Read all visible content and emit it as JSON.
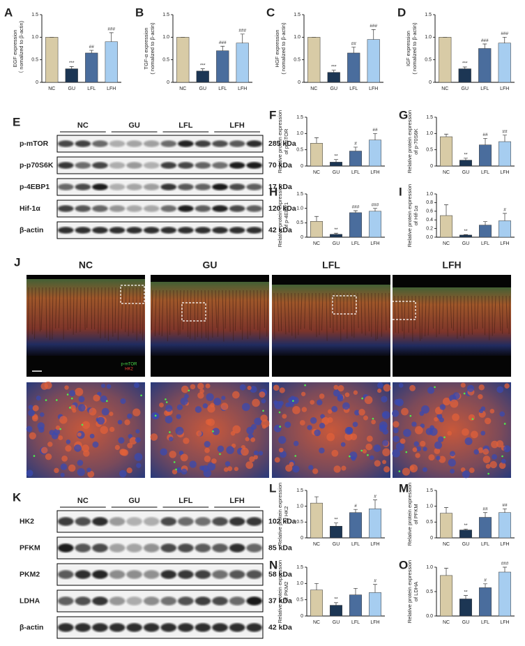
{
  "chart_data": [
    {
      "type": "bar",
      "panel": "A",
      "ylabel": [
        "EGF expression",
        "（ nomalized to β-actin)"
      ],
      "categories": [
        "NC",
        "GU",
        "LFL",
        "LFH"
      ],
      "values": [
        1.0,
        0.3,
        0.65,
        0.9
      ],
      "errors": [
        0,
        0.05,
        0.06,
        0.2
      ],
      "annotations": [
        null,
        "***",
        "##",
        "###"
      ],
      "colors": [
        "#d8cba6",
        "#1c3654",
        "#4a6d9d",
        "#a6cdf0"
      ],
      "ylim": [
        0,
        1.5
      ],
      "yticks": [
        0,
        0.5,
        {
          "value": 1,
          "label": "1.0"
        },
        1.5
      ]
    },
    {
      "type": "bar",
      "panel": "B",
      "ylabel": [
        "TGF-α expression",
        "( nomalized to β-actin)"
      ],
      "categories": [
        "NC",
        "GU",
        "LFL",
        "LFH"
      ],
      "values": [
        1.0,
        0.25,
        0.7,
        0.87
      ],
      "errors": [
        0,
        0.05,
        0.1,
        0.2
      ],
      "annotations": [
        null,
        "***",
        "###",
        "###"
      ],
      "colors": [
        "#d8cba6",
        "#1c3654",
        "#4a6d9d",
        "#a6cdf0"
      ],
      "ylim": [
        0,
        1.5
      ],
      "yticks": [
        0,
        0.5,
        {
          "value": 1,
          "label": "1.0"
        },
        1.5
      ]
    },
    {
      "type": "bar",
      "panel": "C",
      "ylabel": [
        "HGF expression",
        "( nomalized to β-actin)"
      ],
      "categories": [
        "NC",
        "GU",
        "LFL",
        "LFH"
      ],
      "values": [
        1.0,
        0.22,
        0.65,
        0.95
      ],
      "errors": [
        0,
        0.05,
        0.13,
        0.22
      ],
      "annotations": [
        null,
        "***",
        "##",
        "###"
      ],
      "colors": [
        "#d8cba6",
        "#1c3654",
        "#4a6d9d",
        "#a6cdf0"
      ],
      "ylim": [
        0,
        1.5
      ],
      "yticks": [
        0,
        0.5,
        {
          "value": 1,
          "label": "1.0"
        },
        1.5
      ]
    },
    {
      "type": "bar",
      "panel": "D",
      "ylabel": [
        "IGF expression",
        "( nomalized to β-actin)"
      ],
      "categories": [
        "NC",
        "GU",
        "LFL",
        "LFH"
      ],
      "values": [
        1.0,
        0.3,
        0.75,
        0.87
      ],
      "errors": [
        0,
        0.04,
        0.1,
        0.13
      ],
      "annotations": [
        null,
        "***",
        "###",
        "###"
      ],
      "colors": [
        "#d8cba6",
        "#1c3654",
        "#4a6d9d",
        "#a6cdf0"
      ],
      "ylim": [
        0,
        1.5
      ],
      "yticks": [
        0,
        0.5,
        {
          "value": 1,
          "label": "1.0"
        },
        1.5
      ]
    },
    {
      "type": "bar",
      "panel": "F",
      "ylabel": [
        "Relative protein expression",
        "of p-mTOR"
      ],
      "categories": [
        "NC",
        "GU",
        "LFL",
        "LFH"
      ],
      "values": [
        0.7,
        0.12,
        0.46,
        0.8
      ],
      "errors": [
        0.17,
        0.08,
        0.12,
        0.2
      ],
      "annotations": [
        null,
        "**",
        "#",
        "##"
      ],
      "colors": [
        "#d8cba6",
        "#1c3654",
        "#4a6d9d",
        "#a6cdf0"
      ],
      "ylim": [
        0,
        1.5
      ],
      "yticks": [
        0,
        0.5,
        {
          "value": 1,
          "label": "1.0"
        },
        1.5
      ]
    },
    {
      "type": "bar",
      "panel": "G",
      "ylabel": [
        "Relative protein expression",
        "of p-70S6K"
      ],
      "categories": [
        "NC",
        "GU",
        "LFL",
        "LFH"
      ],
      "values": [
        0.9,
        0.18,
        0.65,
        0.75
      ],
      "errors": [
        0.08,
        0.06,
        0.2,
        0.2
      ],
      "annotations": [
        null,
        "**",
        "##",
        "##"
      ],
      "colors": [
        "#d8cba6",
        "#1c3654",
        "#4a6d9d",
        "#a6cdf0"
      ],
      "ylim": [
        0,
        1.5
      ],
      "yticks": [
        0,
        0.5,
        {
          "value": 1,
          "label": "1.0"
        },
        1.5
      ]
    },
    {
      "type": "bar",
      "panel": "H",
      "ylabel": [
        "Relative protein expression",
        "of p-4EBP1"
      ],
      "categories": [
        "NC",
        "GU",
        "LFL",
        "LFH"
      ],
      "values": [
        0.55,
        0.1,
        0.85,
        0.9
      ],
      "errors": [
        0.17,
        0.04,
        0.07,
        0.1
      ],
      "annotations": [
        null,
        "**",
        "###",
        "###"
      ],
      "colors": [
        "#d8cba6",
        "#1c3654",
        "#4a6d9d",
        "#a6cdf0"
      ],
      "ylim": [
        0,
        1.5
      ],
      "yticks": [
        0,
        0.5,
        {
          "value": 1,
          "label": "1.0"
        },
        1.5
      ]
    },
    {
      "type": "bar",
      "panel": "I",
      "ylabel": [
        "Relative protein expression",
        "of Hif-1α"
      ],
      "categories": [
        "NC",
        "GU",
        "LFL",
        "LFH"
      ],
      "values": [
        0.5,
        0.05,
        0.28,
        0.38
      ],
      "errors": [
        0.25,
        0.01,
        0.08,
        0.17
      ],
      "annotations": [
        null,
        "**",
        null,
        "#"
      ],
      "colors": [
        "#d8cba6",
        "#1c3654",
        "#4a6d9d",
        "#a6cdf0"
      ],
      "ylim": [
        0,
        1
      ],
      "yticks": [
        {
          "value": 0,
          "label": "0.0"
        },
        0.2,
        0.4,
        0.6,
        0.8,
        {
          "value": 1,
          "label": "1.0"
        }
      ]
    },
    {
      "type": "bar",
      "panel": "L",
      "ylabel": [
        "Relative protein expression",
        "of HK2"
      ],
      "categories": [
        "NC",
        "GU",
        "LFL",
        "LFH"
      ],
      "values": [
        1.1,
        0.37,
        0.8,
        0.92
      ],
      "errors": [
        0.2,
        0.1,
        0.1,
        0.28
      ],
      "annotations": [
        null,
        "**",
        "#",
        "#"
      ],
      "colors": [
        "#d8cba6",
        "#1c3654",
        "#4a6d9d",
        "#a6cdf0"
      ],
      "ylim": [
        0,
        1.5
      ],
      "yticks": [
        0,
        0.5,
        {
          "value": 1,
          "label": "1.0"
        },
        1.5
      ]
    },
    {
      "type": "bar",
      "panel": "M",
      "ylabel": [
        "Relative protein expression",
        "of PFKM"
      ],
      "categories": [
        "NC",
        "GU",
        "LFL",
        "LFH"
      ],
      "values": [
        0.78,
        0.25,
        0.65,
        0.8
      ],
      "errors": [
        0.18,
        0.03,
        0.15,
        0.12
      ],
      "annotations": [
        null,
        "**",
        "##",
        "##"
      ],
      "colors": [
        "#d8cba6",
        "#1c3654",
        "#4a6d9d",
        "#a6cdf0"
      ],
      "ylim": [
        0,
        1.5
      ],
      "yticks": [
        0,
        0.5,
        {
          "value": 1,
          "label": "1.0"
        },
        1.5
      ]
    },
    {
      "type": "bar",
      "panel": "N",
      "ylabel": [
        "Relative protein expression",
        "of PKM2"
      ],
      "categories": [
        "NC",
        "GU",
        "LFL",
        "LFH"
      ],
      "values": [
        0.8,
        0.33,
        0.65,
        0.72
      ],
      "errors": [
        0.2,
        0.08,
        0.2,
        0.25
      ],
      "annotations": [
        null,
        "**",
        null,
        "#"
      ],
      "colors": [
        "#d8cba6",
        "#1c3654",
        "#4a6d9d",
        "#a6cdf0"
      ],
      "ylim": [
        0,
        1.5
      ],
      "yticks": [
        0,
        0.5,
        {
          "value": 1,
          "label": "1.0"
        },
        1.5
      ]
    },
    {
      "type": "bar",
      "panel": "O",
      "ylabel": [
        "Relative protein expression",
        "of LDHA"
      ],
      "categories": [
        "NC",
        "GU",
        "LFL",
        "LFH"
      ],
      "values": [
        0.83,
        0.35,
        0.58,
        0.9
      ],
      "errors": [
        0.15,
        0.07,
        0.08,
        0.1
      ],
      "annotations": [
        null,
        "**",
        "#",
        "###"
      ],
      "colors": [
        "#d8cba6",
        "#1c3654",
        "#4a6d9d",
        "#a6cdf0"
      ],
      "ylim": [
        0,
        1
      ],
      "yticks": [
        {
          "value": 0,
          "label": "0.0"
        },
        0.5,
        {
          "value": 1,
          "label": "1.0"
        }
      ]
    }
  ],
  "blots": [
    {
      "panel": "E",
      "groups": [
        "NC",
        "GU",
        "LFL",
        "LFH"
      ],
      "rows": [
        {
          "protein": "p-mTOR",
          "size": "285 kDa"
        },
        {
          "protein": "p-p70S6K",
          "size": "70 kDa"
        },
        {
          "protein": "p-4EBP1",
          "size": "17 kDa"
        },
        {
          "protein": "Hif-1α",
          "size": "120 kDa"
        },
        {
          "protein": "β-actin",
          "size": "42 kDa"
        }
      ]
    },
    {
      "panel": "K",
      "groups": [
        "NC",
        "GU",
        "LFL",
        "LFH"
      ],
      "rows": [
        {
          "protein": "HK2",
          "size": "102 kDa"
        },
        {
          "protein": "PFKM",
          "size": "85 kDa"
        },
        {
          "protein": "PKM2",
          "size": "58 kDa"
        },
        {
          "protein": "LDHA",
          "size": "37 kDa"
        },
        {
          "protein": "β-actin",
          "size": "42 kDa"
        }
      ]
    }
  ],
  "imaging": {
    "panel": "J",
    "groups": [
      "NC",
      "GU",
      "LFL",
      "LFH"
    ],
    "stains": [
      "p-mTOR",
      "HK2"
    ]
  }
}
